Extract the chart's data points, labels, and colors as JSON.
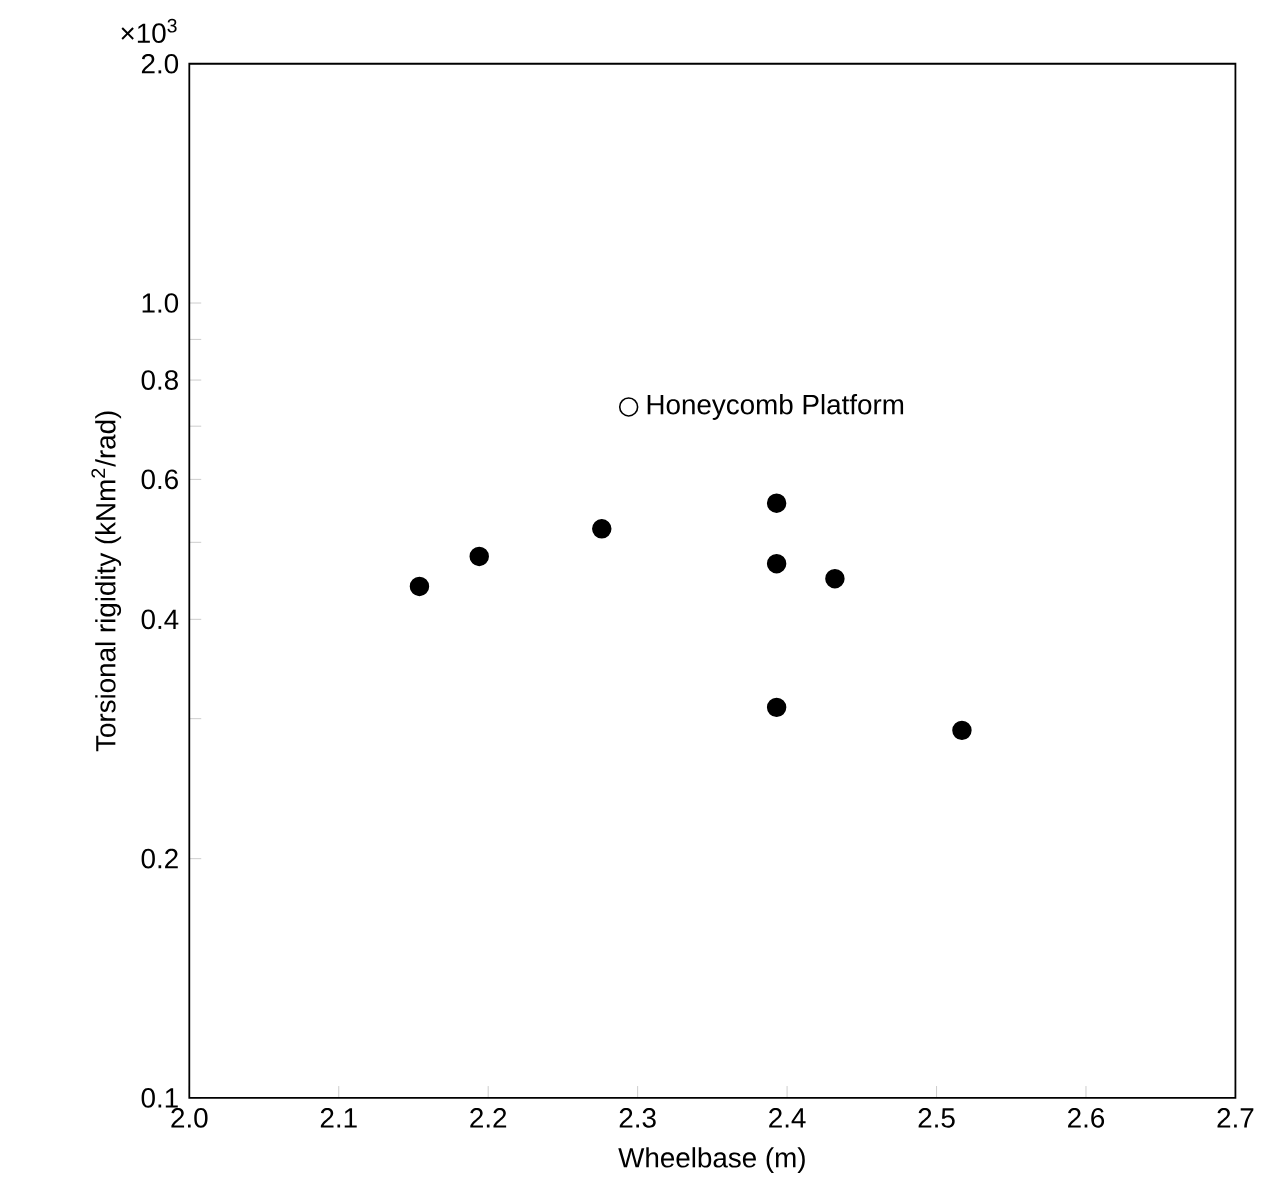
{
  "chart_data": {
    "type": "scatter",
    "xlabel": "Wheelbase (m)",
    "ylabel": "Torsional rigidity (kNm$^{2}$/rad)",
    "annotations": [
      "×10$^{3}$"
    ],
    "series": [
      {
        "color": "#000000",
        "x": [
          2.154,
          2.194,
          2.276,
          2.393,
          2.393,
          2.432,
          2.393,
          2.517
        ],
        "values": [
          0.44,
          0.48,
          0.52,
          0.56,
          0.47,
          0.45,
          0.31,
          0.29
        ]
      },
      {
        "name": "Honeycomb Platform",
        "color": "#ffffff",
        "x": [
          2.294
        ],
        "values": [
          0.74
        ]
      }
    ],
    "log": "y",
    "grid": false,
    "legend": false,
    "xlim": [
      2.0,
      2.7
    ],
    "ylim": [
      0.1,
      2.0
    ],
    "xticks": [
      {
        "value": 2.0,
        "label": "2.0"
      },
      2.1,
      2.2,
      2.3,
      2.4,
      2.5,
      2.6,
      2.7
    ],
    "yticks": [
      0.1,
      0.2,
      {
        "value": 0.3,
        "label": null
      },
      0.4,
      {
        "value": 0.5,
        "label": null
      },
      0.6,
      {
        "value": 0.7,
        "label": null
      },
      0.8,
      {
        "value": 0.9,
        "label": null
      },
      {
        "value": 1.0,
        "label": "1.0"
      },
      {
        "value": 2.0,
        "label": "2.0"
      }
    ]
  }
}
